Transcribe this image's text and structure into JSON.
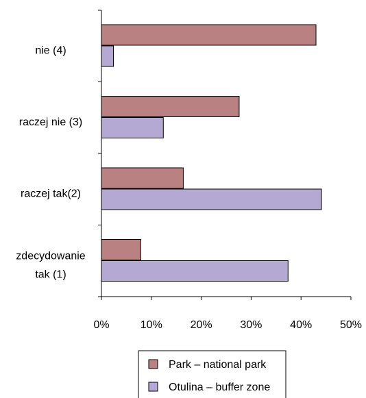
{
  "chart_data": {
    "type": "bar",
    "orientation": "horizontal",
    "categories": [
      [
        "nie (4)"
      ],
      [
        "raczej nie (3)"
      ],
      [
        "raczej tak(2)"
      ],
      [
        "zdecydowanie",
        "tak (1)"
      ]
    ],
    "series": [
      {
        "name": "Park – national park",
        "values": [
          43,
          27.6,
          16.4,
          7.9
        ]
      },
      {
        "name": "Otulina – buffer zone",
        "values": [
          2.4,
          12.4,
          44.1,
          37.4
        ]
      }
    ],
    "xlim": [
      0,
      50
    ],
    "xticks": [
      0,
      10,
      20,
      30,
      40,
      50
    ],
    "tick_suffix": "%",
    "grid": false,
    "legend_position": "bottom",
    "colors": {
      "series": [
        "#b98181",
        "#b3a9d3"
      ],
      "axis": "#000000"
    }
  }
}
